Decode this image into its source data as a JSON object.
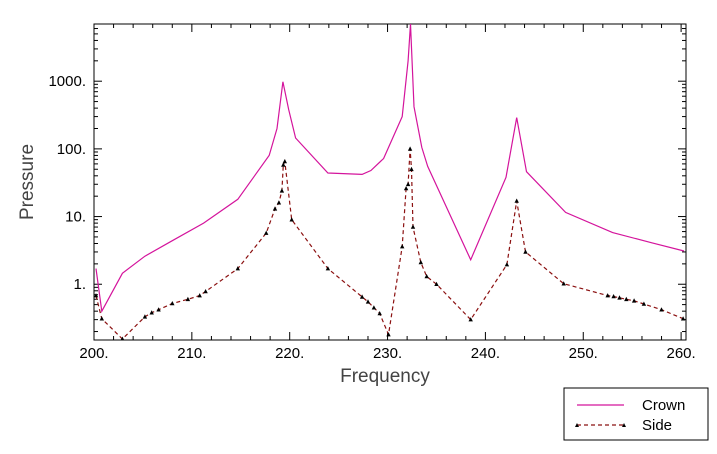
{
  "chart_data": {
    "type": "line",
    "title": "",
    "xlabel": "Frequency",
    "ylabel": "Pressure",
    "xlim": [
      200,
      260.5
    ],
    "ylim": [
      0.15,
      7000
    ],
    "yscale": "log",
    "x_ticks": [
      200,
      210,
      220,
      230,
      240,
      250,
      260
    ],
    "x_tick_labels": [
      "200.",
      "210.",
      "220.",
      "230.",
      "240.",
      "250.",
      "260."
    ],
    "y_ticks": [
      1,
      10,
      100,
      1000
    ],
    "y_tick_labels": [
      "1.",
      "10.",
      "100.",
      "1000."
    ],
    "legend_position": "bottom-right, outside plot",
    "series": [
      {
        "name": "Crown",
        "color": "#d4149c",
        "style": "solid",
        "x": [
          200.2,
          200.8,
          202.9,
          205.2,
          208.0,
          211.2,
          214.7,
          217.9,
          218.7,
          219.3,
          219.9,
          220.6,
          223.9,
          227.4,
          228.3,
          229.6,
          231.5,
          232.1,
          232.35,
          232.7,
          233.5,
          234.1,
          235.2,
          238.5,
          242.1,
          243.2,
          244.2,
          248.2,
          253.0,
          257.0,
          260.3
        ],
        "y": [
          1.7,
          0.4,
          1.45,
          2.6,
          4.4,
          8.0,
          18,
          80,
          200,
          980,
          380,
          145,
          44,
          42,
          48,
          72,
          300,
          2000,
          7000,
          420,
          105,
          55,
          25,
          2.3,
          38,
          290,
          46,
          11.5,
          5.8,
          4.1,
          3.1
        ]
      },
      {
        "name": "Side",
        "color": "#8b1010",
        "style": "dashed",
        "markers": "triangle",
        "x": [
          200.2,
          200.8,
          202.9,
          205.2,
          205.9,
          206.6,
          208.0,
          209.6,
          210.8,
          211.4,
          214.7,
          217.6,
          218.5,
          218.9,
          219.2,
          219.35,
          219.5,
          220.2,
          223.9,
          227.4,
          228.0,
          228.6,
          229.2,
          230.1,
          231.5,
          231.9,
          232.1,
          232.3,
          232.45,
          232.6,
          233.4,
          234.0,
          235.0,
          238.5,
          242.2,
          243.2,
          244.1,
          248.0,
          252.5,
          253.1,
          253.7,
          254.4,
          255.2,
          256.2,
          258.0,
          260.2
        ],
        "y": [
          0.68,
          0.31,
          0.155,
          0.33,
          0.38,
          0.42,
          0.52,
          0.6,
          0.68,
          0.78,
          1.7,
          5.7,
          13,
          16,
          24,
          58,
          65,
          9,
          1.7,
          0.65,
          0.55,
          0.45,
          0.37,
          0.18,
          3.6,
          26,
          30,
          100,
          50,
          7,
          2.1,
          1.3,
          1.0,
          0.3,
          1.95,
          17,
          3.0,
          1.02,
          0.68,
          0.66,
          0.63,
          0.6,
          0.57,
          0.51,
          0.42,
          0.31
        ]
      }
    ]
  }
}
